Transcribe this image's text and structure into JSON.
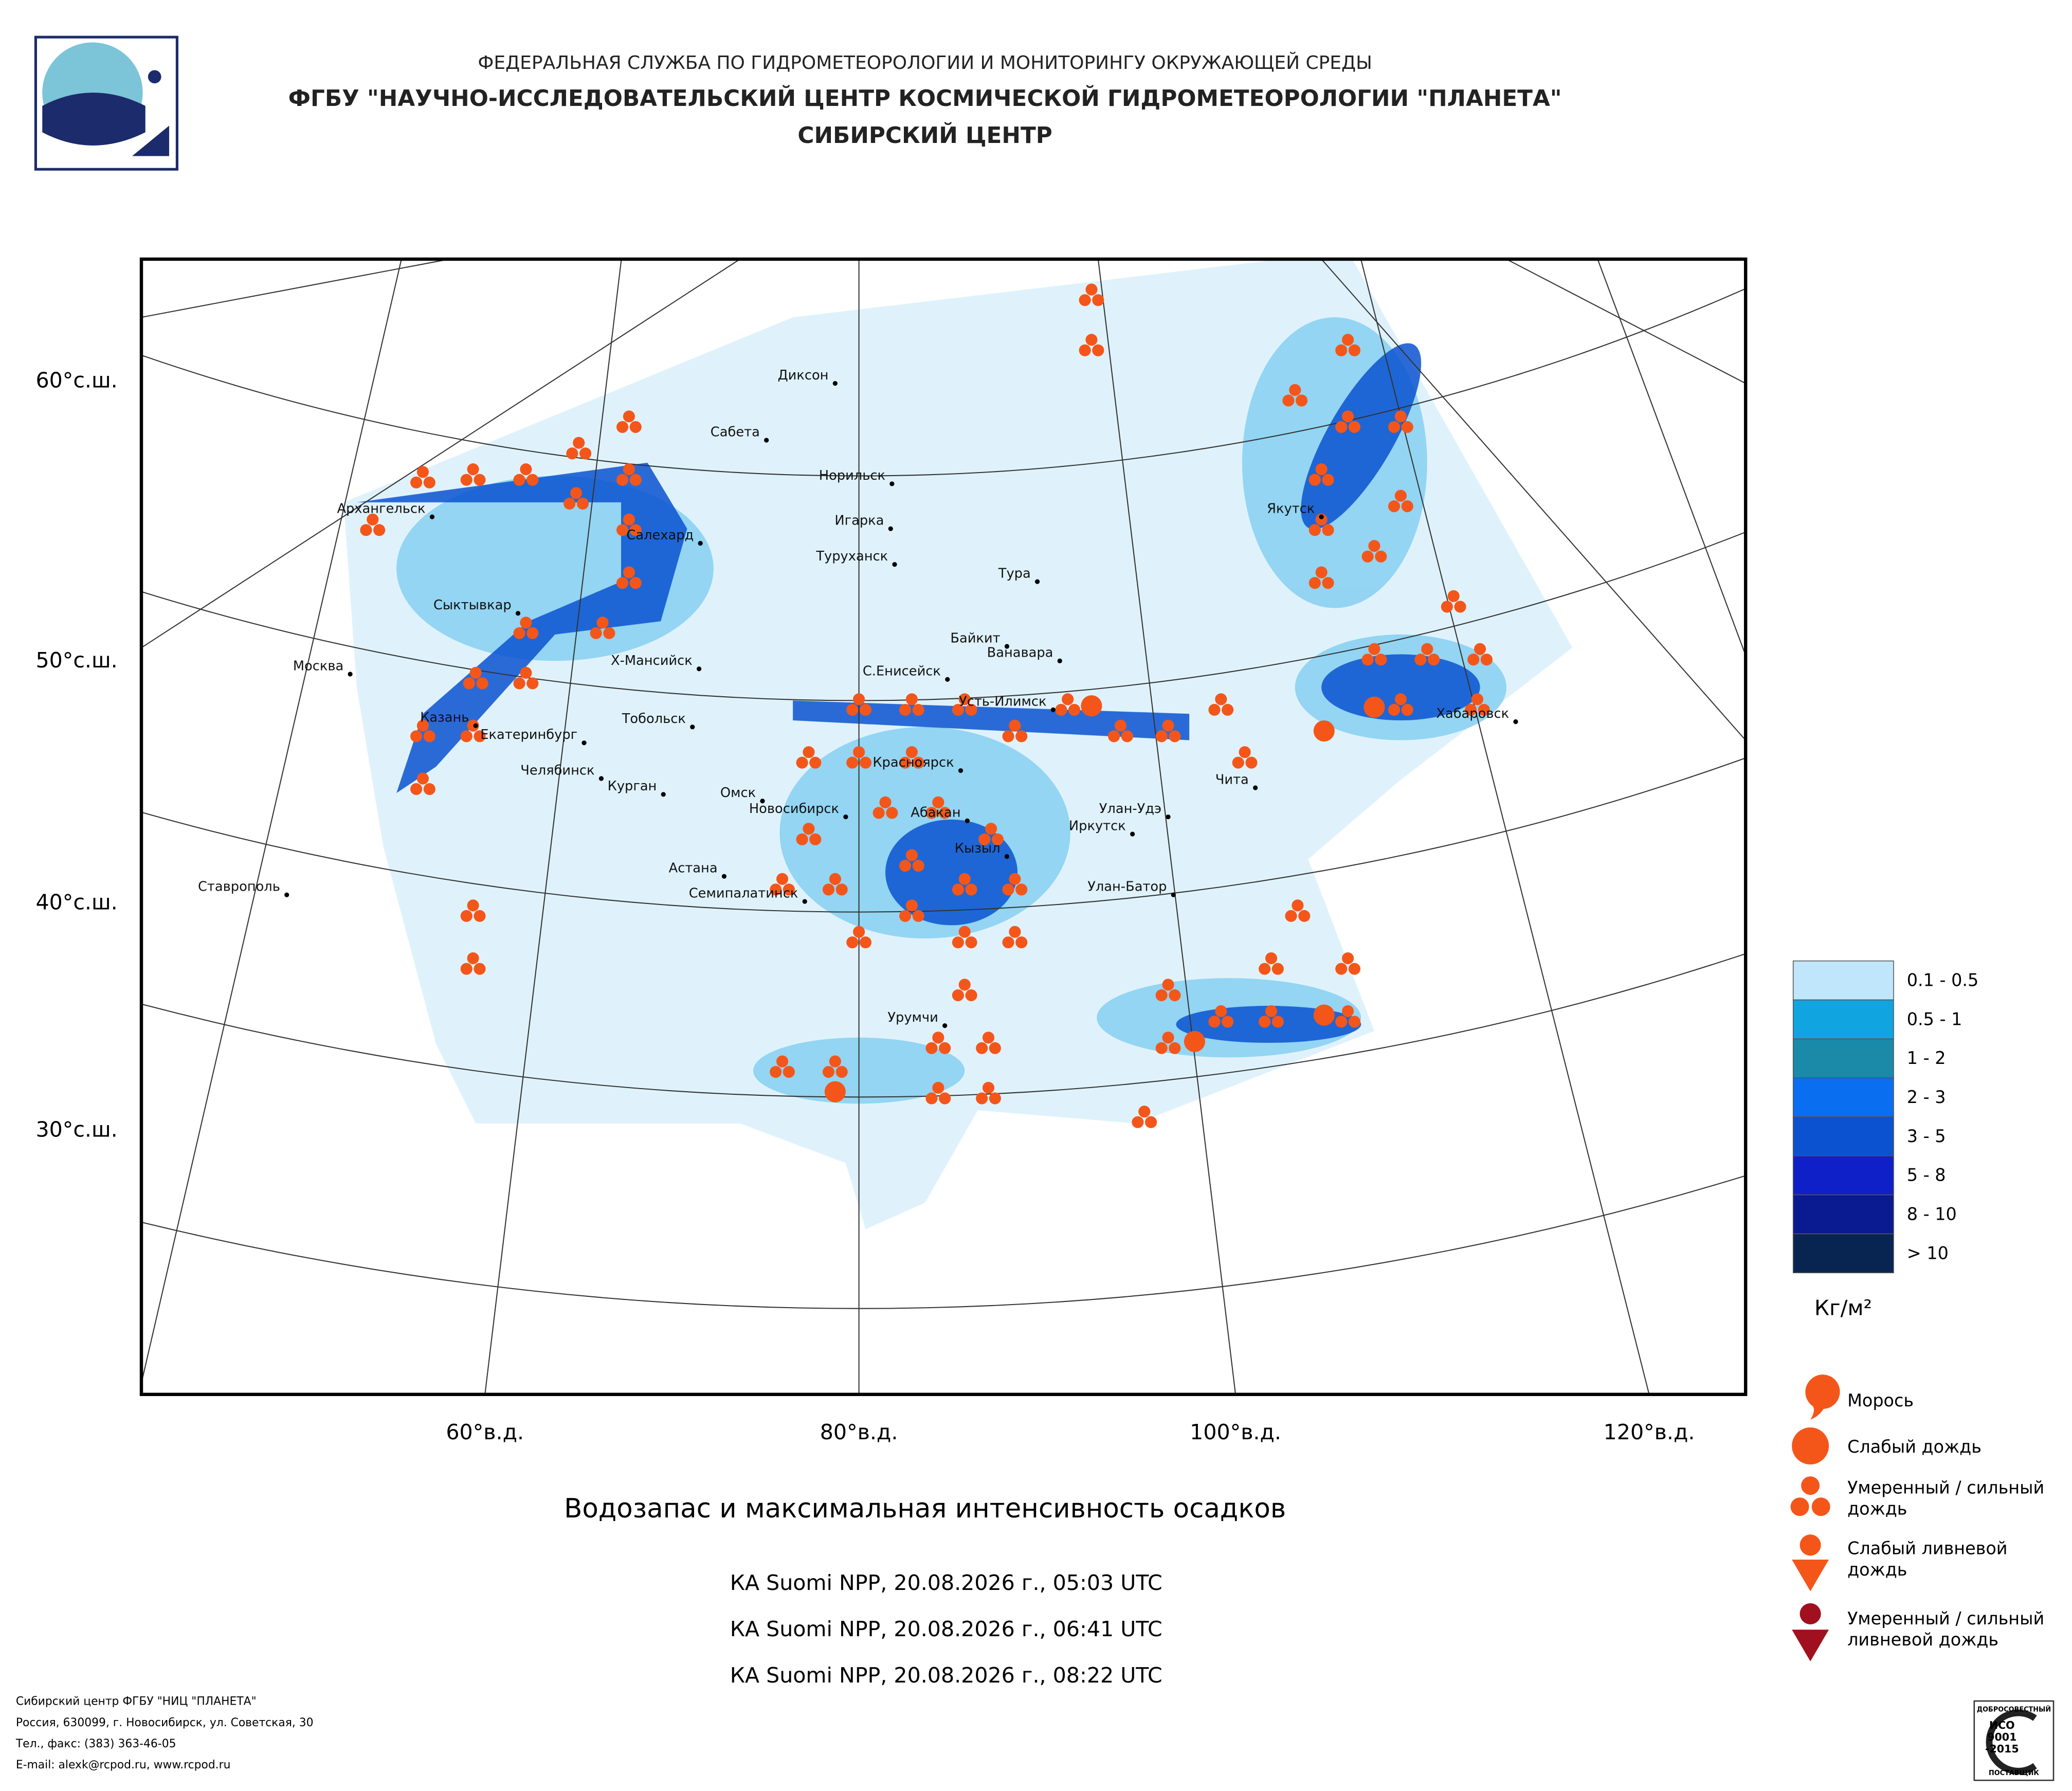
{
  "header": {
    "agency": "ФЕДЕРАЛЬНАЯ СЛУЖБА ПО ГИДРОМЕТЕОРОЛОГИИ И МОНИТОРИНГУ ОКРУЖАЮЩЕЙ СРЕДЫ",
    "center": "ФГБУ \"НАУЧНО-ИССЛЕДОВАТЕЛЬСКИЙ ЦЕНТР КОСМИЧЕСКОЙ ГИДРОМЕТЕОРОЛОГИИ \"ПЛАНЕТА\"",
    "branch": "СИБИРСКИЙ ЦЕНТР"
  },
  "map": {
    "lat_labels": [
      "60°с.ш.",
      "50°с.ш.",
      "40°с.ш.",
      "30°с.ш."
    ],
    "lon_labels": [
      "60°в.д.",
      "80°в.д.",
      "100°в.д.",
      "120°в.д."
    ],
    "cities": [
      "Диксон",
      "Сабета",
      "Норильск",
      "Игарка",
      "Салехард",
      "Туруханск",
      "Тура",
      "Архангельск",
      "Сыктывкар",
      "Байкит",
      "Ванавара",
      "Москва",
      "Х-Мансийск",
      "С.Енисейск",
      "Усть-Илимск",
      "Хабаровск",
      "Якутск",
      "Казань",
      "Екатеринбург",
      "Тобольск",
      "Красноярск",
      "Челябинск",
      "Курган",
      "Омск",
      "Новосибирск",
      "Абакан",
      "Улан-Удэ",
      "Чита",
      "Иркутск",
      "Кызыл",
      "Астана",
      "Семипалатинск",
      "Улан-Батор",
      "Ставрополь",
      "Урумчи"
    ]
  },
  "legend": {
    "items": [
      {
        "label": "0.1 - 0.5",
        "color": "#bfe6fa"
      },
      {
        "label": "0.5 - 1",
        "color": "#10a5e0"
      },
      {
        "label": "1 - 2",
        "color": "#1a8aa8"
      },
      {
        "label": "2 - 3",
        "color": "#0a6ef0"
      },
      {
        "label": "3 - 5",
        "color": "#0a52d0"
      },
      {
        "label": "5 - 8",
        "color": "#1020c8"
      },
      {
        "label": "8 - 10",
        "color": "#0a1a90"
      },
      {
        "label": "> 10",
        "color": "#072550"
      }
    ],
    "unit": "Кг/м²",
    "precip": [
      "Морось",
      "Слабый дождь",
      "Умеренный / сильный дождь",
      "Слабый ливневой дождь",
      "Умеренный / сильный ливневой дождь"
    ]
  },
  "title": "Водозапас и максимальная интенсивность осадков",
  "passes": [
    "КА Suomi NPP, 20.08.2026 г., 05:03 UTC",
    "КА Suomi NPP, 20.08.2026 г., 06:41 UTC",
    "КА Suomi NPP, 20.08.2026 г., 08:22 UTC"
  ],
  "footer": [
    "Сибирский центр ФГБУ \"НИЦ \"ПЛАНЕТА\"",
    "Россия, 630099, г. Новосибирск, ул. Советская, 30",
    "Тел., факс: (383) 363-46-05",
    "E-mail: alexk@rcpod.ru, www.rcpod.ru"
  ],
  "badge": {
    "top": "ДОБРОСОВЕСТНЫЙ",
    "iso": "ИСО",
    "num": "9001",
    "year": "-2015",
    "bottom": "ПОСТАВЩИК"
  }
}
